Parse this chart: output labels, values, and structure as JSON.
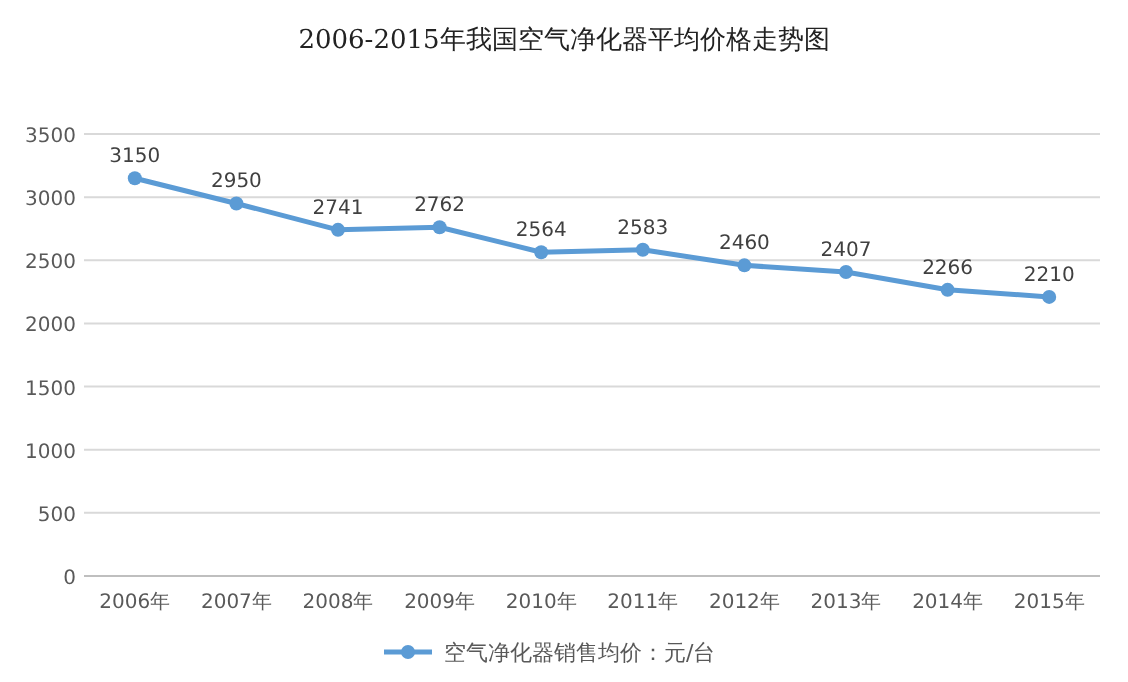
{
  "chart_data": {
    "type": "line",
    "title": "2006-2015年我国空气净化器平均价格走势图",
    "categories": [
      "2006年",
      "2007年",
      "2008年",
      "2009年",
      "2010年",
      "2011年",
      "2012年",
      "2013年",
      "2014年",
      "2015年"
    ],
    "series": [
      {
        "name": "空气净化器销售均价：元/台",
        "color": "#5b9bd5",
        "values": [
          3150,
          2950,
          2741,
          2762,
          2564,
          2583,
          2460,
          2407,
          2266,
          2210
        ]
      }
    ],
    "ylim": [
      0,
      3500
    ],
    "yticks": [
      0,
      500,
      1000,
      1500,
      2000,
      2500,
      3000,
      3500
    ],
    "grid": "y",
    "legend": "bottom",
    "marker": "circle",
    "line_style": "solid",
    "data_labels": true
  }
}
